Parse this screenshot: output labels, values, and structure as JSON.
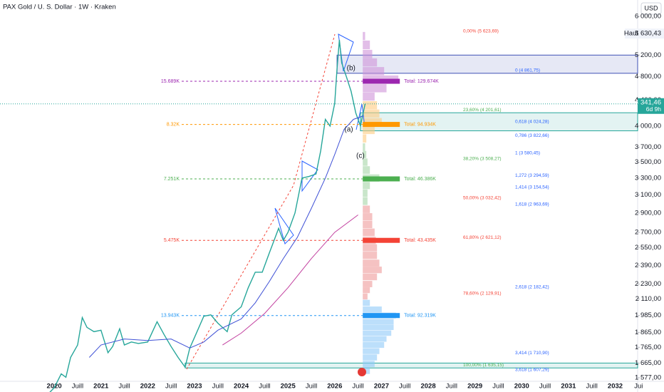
{
  "header": {
    "title": "PAX Gold / U. S. Dollar · 1W · Kraken",
    "currency": "USD"
  },
  "chart_data": {
    "type": "line",
    "xlim": [
      2018.84,
      2032.48
    ],
    "ylim": [
      1577,
      6000
    ],
    "log_scale": true,
    "xticks": [
      2020,
      {
        "value": 2020.5,
        "label": "Juill"
      },
      2021,
      {
        "value": 2021.5,
        "label": "Juill"
      },
      2022,
      {
        "value": 2022.5,
        "label": "Juill"
      },
      2023,
      {
        "value": 2023.5,
        "label": "Juill"
      },
      2024,
      {
        "value": 2024.5,
        "label": "Juill"
      },
      2025,
      {
        "value": 2025.5,
        "label": "Juill"
      },
      2026,
      {
        "value": 2026.5,
        "label": "Juill"
      },
      2027,
      {
        "value": 2027.5,
        "label": "Juill"
      },
      2028,
      {
        "value": 2028.5,
        "label": "Juill"
      },
      2029,
      {
        "value": 2029.5,
        "label": "Juill"
      },
      2030,
      {
        "value": 2030.5,
        "label": "Juill"
      },
      2031,
      {
        "value": 2031.5,
        "label": "Juill"
      },
      2032,
      {
        "value": 2032.5,
        "label": "Jui"
      }
    ],
    "yticks": [
      {
        "value": 6000,
        "label": "6 000,00"
      },
      {
        "value": 5200,
        "label": "5 200,00"
      },
      {
        "value": 4800,
        "label": "4 800,00"
      },
      {
        "value": 4400,
        "label": "4 400,00"
      },
      {
        "value": 4000,
        "label": "4 000,00"
      },
      {
        "value": 3700,
        "label": "3 700,00"
      },
      {
        "value": 3500,
        "label": "3 500,00"
      },
      {
        "value": 3300,
        "label": "3 300,00"
      },
      {
        "value": 3100,
        "label": "3 100,00"
      },
      {
        "value": 2900,
        "label": "2 900,00"
      },
      {
        "value": 2700,
        "label": "2 700,00"
      },
      {
        "value": 2550,
        "label": "2 550,00"
      },
      {
        "value": 2390,
        "label": "2 390,00"
      },
      {
        "value": 2230,
        "label": "2 230,00"
      },
      {
        "value": 2110,
        "label": "2 110,00"
      },
      {
        "value": 1985,
        "label": "1 985,00"
      },
      {
        "value": 1865,
        "label": "1 865,00"
      },
      {
        "value": 1765,
        "label": "1 765,00"
      },
      {
        "value": 1665,
        "label": "1 665,00"
      },
      {
        "value": 1577,
        "label": "1 577,00"
      }
    ],
    "series": [
      {
        "color": "#26a69a",
        "x": [
          2019.85,
          2020.0,
          2020.15,
          2020.25,
          2020.35,
          2020.5,
          2020.6,
          2020.7,
          2020.85,
          2021.0,
          2021.15,
          2021.25,
          2021.4,
          2021.5,
          2021.65,
          2021.8,
          2022.0,
          2022.2,
          2022.35,
          2022.5,
          2022.65,
          2022.8,
          2022.9,
          2023.0,
          2023.2,
          2023.35,
          2023.5,
          2023.7,
          2023.8,
          2024.0,
          2024.15,
          2024.3,
          2024.45,
          2024.6,
          2024.8,
          2024.9,
          2025.0,
          2025.15,
          2025.3,
          2025.45,
          2025.6,
          2025.7,
          2025.8,
          2025.9,
          2026.0,
          2026.05,
          2026.1,
          2026.15,
          2026.25,
          2026.35,
          2026.45,
          2026.55,
          2026.65
        ],
        "values": [
          1480,
          1520,
          1600,
          1580,
          1700,
          1780,
          1970,
          1900,
          1870,
          1880,
          1730,
          1770,
          1890,
          1780,
          1800,
          1790,
          1800,
          1940,
          1850,
          1770,
          1700,
          1640,
          1760,
          1830,
          1980,
          1990,
          1930,
          1870,
          1990,
          2050,
          2200,
          2330,
          2330,
          2500,
          2740,
          2620,
          2700,
          2900,
          3300,
          3320,
          3350,
          3650,
          4100,
          4000,
          4350,
          4950,
          5500,
          5050,
          4800,
          4550,
          4200,
          4000,
          4341.46
        ]
      },
      {
        "color": "#3f51d6",
        "x": [
          2020.75,
          2021.0,
          2021.5,
          2022.0,
          2022.5,
          2022.9,
          2023.2,
          2023.5,
          2024.0,
          2024.3,
          2024.6,
          2024.9,
          2025.2,
          2025.5,
          2025.8,
          2026.0,
          2026.2,
          2026.4,
          2026.6
        ],
        "values": [
          1700,
          1780,
          1820,
          1810,
          1820,
          1760,
          1800,
          1880,
          1960,
          2080,
          2250,
          2450,
          2650,
          2950,
          3300,
          3600,
          3950,
          4100,
          4150
        ]
      },
      {
        "color": "#c2409f",
        "x": [
          2023.6,
          2024.0,
          2024.5,
          2025.0,
          2025.5,
          2026.0,
          2026.5
        ],
        "values": [
          1780,
          1860,
          2000,
          2200,
          2450,
          2700,
          2880
        ]
      }
    ],
    "high": {
      "label": "Haut",
      "value": 5630.43,
      "value_label": "5 630,43"
    },
    "last": {
      "value": 4341.46,
      "value_label": "4 341,46",
      "countdown": "6d 9h",
      "color": "#26a69a"
    },
    "zones": [
      {
        "from": 4861.75,
        "to": 5200,
        "start": 2026.05,
        "color": "#3f51b5"
      },
      {
        "from": 3930,
        "to": 4201.61,
        "start": 2026.55,
        "color": "#26a69a"
      },
      {
        "from": 1635.15,
        "to": 1665,
        "start": 2022.8,
        "color": "#26a69a"
      }
    ],
    "waves": [
      {
        "text": "(b)",
        "x": 2026.35,
        "price": 4950
      },
      {
        "text": "(a)",
        "x": 2026.3,
        "price": 3950
      },
      {
        "text": "(c)",
        "x": 2026.55,
        "price": 3580
      }
    ],
    "profile": {
      "start": 2026.6,
      "prices": [
        1620,
        1660,
        1700,
        1740,
        1780,
        1820,
        1860,
        1900,
        1940,
        1985,
        2030,
        2080,
        2130,
        2180,
        2230,
        2290,
        2350,
        2410,
        2480,
        2550,
        2620,
        2700,
        2780,
        2860,
        2940,
        3030,
        3120,
        3210,
        3300,
        3400,
        3500,
        3600,
        3700,
        3820,
        3940,
        4060,
        4190,
        4320,
        4460,
        4600,
        4750,
        4900,
        5060,
        5220,
        5400,
        5580
      ],
      "volumes": [
        3,
        5,
        6,
        7,
        9,
        10,
        12,
        13,
        13,
        14,
        8,
        3,
        2,
        3,
        4,
        6,
        8,
        7,
        6,
        6,
        5.5,
        5,
        4,
        4,
        3,
        2,
        2,
        3,
        7,
        3,
        2,
        1.5,
        1,
        1.5,
        5,
        8,
        7,
        6,
        5,
        10,
        15,
        9,
        6,
        4,
        3,
        1
      ],
      "zones": [
        {
          "to": 2100,
          "color": "#90caf9"
        },
        {
          "to": 2950,
          "color": "#ef9a9a"
        },
        {
          "to": 3800,
          "color": "#a5d6a7"
        },
        {
          "to": 4450,
          "color": "#ffcc80"
        },
        {
          "to": 6000,
          "color": "#ce93d8"
        }
      ]
    },
    "profile_nodes": [
      {
        "price": 4720,
        "left_label": "15.689K",
        "total_label": "Total: 129.674K",
        "color": "#9c27b0"
      },
      {
        "price": 4024,
        "left_label": "8.32K",
        "total_label": "Total: 94.934K",
        "color": "#ff9800"
      },
      {
        "price": 3290,
        "left_label": "7.251K",
        "total_label": "Total: 46.386K",
        "color": "#4caf50"
      },
      {
        "price": 2621,
        "left_label": "5.475K",
        "total_label": "Total: 43.435K",
        "color": "#f44336"
      },
      {
        "price": 1985,
        "left_label": "13.943K",
        "total_label": "Total: 92.319K",
        "color": "#2196f3"
      }
    ],
    "fib_retracement": [
      {
        "text": "0,00% (5 623,69)",
        "price": 5623.69,
        "color": "#f44336"
      },
      {
        "text": "23,60% (4 201,61)",
        "price": 4201.61,
        "color": "#4caf50"
      },
      {
        "text": "38,20% (3 508,27)",
        "price": 3508.27,
        "color": "#4caf50"
      },
      {
        "text": "50,00% (3 032,42)",
        "price": 3032.42,
        "color": "#f44336"
      },
      {
        "text": "61,80% (2 621,12)",
        "price": 2621.12,
        "color": "#f44336"
      },
      {
        "text": "78,60% (2 129,91)",
        "price": 2129.91,
        "color": "#f44336"
      },
      {
        "text": "100,00% (1 635,15)",
        "price": 1635.15,
        "color": "#4caf50"
      }
    ],
    "fib_extension": [
      {
        "text": "0 (4 861,75)",
        "price": 4861.75
      },
      {
        "text": "0,618 (4 024,28)",
        "price": 4024.28
      },
      {
        "text": "0,786 (3 822,66)",
        "price": 3822.66
      },
      {
        "text": "1 (3 580,45)",
        "price": 3580.45
      },
      {
        "text": "1,272 (3 294,59)",
        "price": 3294.59
      },
      {
        "text": "1,414 (3 154,54)",
        "price": 3154.54
      },
      {
        "text": "1,618 (2 963,69)",
        "price": 2963.69
      },
      {
        "text": "2,618 (2 182,42)",
        "price": 2182.42
      },
      {
        "text": "3,414 (1 710,90)",
        "price": 1710.9
      },
      {
        "text": "3,618 (1 607,29)",
        "price": 1607.29
      }
    ],
    "extension_color": "#2962ff"
  }
}
